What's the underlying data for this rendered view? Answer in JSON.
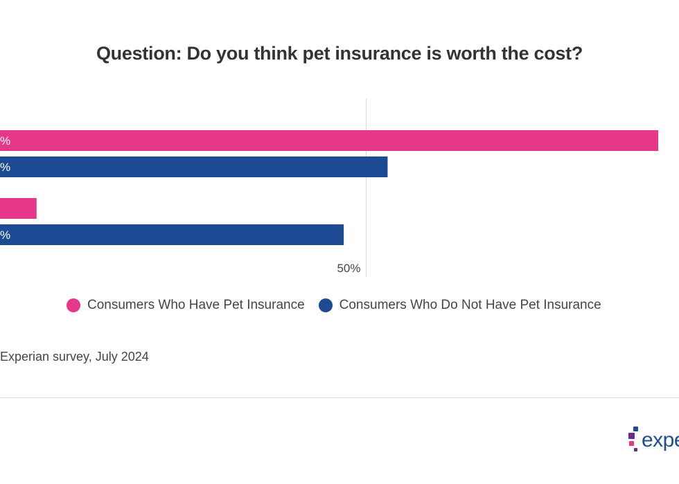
{
  "title": "Question: Do you think pet insurance is worth the cost?",
  "chart_data": {
    "type": "bar",
    "orientation": "horizontal",
    "categories": [
      "",
      ""
    ],
    "series": [
      {
        "name": "Consumers Who Have Pet Insurance",
        "color": "#e6388a",
        "values": [
          90,
          5
        ],
        "labels": [
          "%",
          ""
        ]
      },
      {
        "name": "Consumers Who Do Not Have Pet Insurance",
        "color": "#1c4a93",
        "values": [
          53,
          47
        ],
        "labels": [
          "%",
          "%"
        ]
      }
    ],
    "xlim": [
      0,
      90
    ],
    "xticks": [
      {
        "value": 50,
        "label": "50%"
      }
    ],
    "grid": true,
    "legend": "bottom"
  },
  "legend": {
    "items": [
      {
        "label": "Consumers Who Have Pet Insurance",
        "color": "#e6388a"
      },
      {
        "label": "Consumers Who Do Not Have Pet Insurance",
        "color": "#1c4a93"
      }
    ]
  },
  "source": "Experian survey, July 2024",
  "logo": {
    "text": "expe",
    "colors": [
      "#e6388a",
      "#6a2c91",
      "#1d4f91"
    ]
  }
}
